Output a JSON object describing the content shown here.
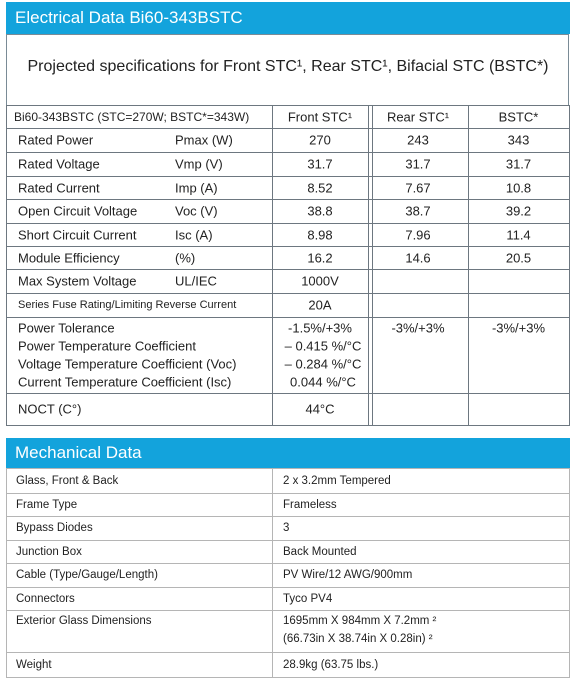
{
  "electrical": {
    "title": "Electrical Data Bi60-343BSTC",
    "subtitle": "Projected specifications for Front STC¹, Rear STC¹, Bifacial STC (BSTC*)",
    "header": [
      "Bi60-343BSTC (STC=270W; BSTC*=343W)",
      "Front STC¹",
      "Rear STC¹",
      "BSTC*"
    ],
    "rows": [
      {
        "label": "Rated Power",
        "unit": "Pmax (W)",
        "front": "270",
        "rear": "243",
        "bstc": "343"
      },
      {
        "label": "Rated Voltage",
        "unit": "Vmp (V)",
        "front": "31.7",
        "rear": "31.7",
        "bstc": "31.7"
      },
      {
        "label": "Rated Current",
        "unit": "Imp (A)",
        "front": "8.52",
        "rear": "7.67",
        "bstc": "10.8"
      },
      {
        "label": "Open Circuit Voltage",
        "unit": "Voc (V)",
        "front": "38.8",
        "rear": "38.7",
        "bstc": "39.2"
      },
      {
        "label": "Short Circuit Current",
        "unit": "Isc (A)",
        "front": "8.98",
        "rear": "7.96",
        "bstc": "11.4"
      },
      {
        "label": "Module Efficiency",
        "unit": "(%)",
        "front": "16.2",
        "rear": "14.6",
        "bstc": "20.5"
      },
      {
        "label": "Max System Voltage",
        "unit": "UL/IEC",
        "front": "1000V"
      },
      {
        "label": "Series Fuse Rating/Limiting Reverse Current",
        "front": "20A"
      },
      {
        "label": "Power Tolerance",
        "front": "-1.5%/+3%",
        "rear": "-3%/+3%",
        "bstc": "-3%/+3%"
      },
      {
        "label": "Power Temperature Coefficient",
        "front": "– 0.415 %/°C"
      },
      {
        "label": "Voltage Temperature Coefficient (Voc)",
        "front": "– 0.284 %/°C"
      },
      {
        "label": "Current Temperature Coefficient (Isc)",
        "front": "0.044 %/°C"
      },
      {
        "label": "NOCT (C°)",
        "front": "44°C"
      }
    ]
  },
  "mechanical": {
    "title": "Mechanical Data",
    "rows": [
      [
        "Glass, Front & Back",
        [
          "2 x 3.2mm Tempered"
        ]
      ],
      [
        "Frame Type",
        [
          "Frameless"
        ]
      ],
      [
        "Bypass Diodes",
        [
          "3"
        ]
      ],
      [
        "Junction Box",
        [
          "Back Mounted"
        ]
      ],
      [
        "Cable (Type/Gauge/Length)",
        [
          "PV Wire/12 AWG/900mm"
        ]
      ],
      [
        "Connectors",
        [
          "Tyco PV4"
        ]
      ],
      [
        "Exterior Glass Dimensions",
        [
          "1695mm X 984mm X 7.2mm ²",
          "(66.73in X 38.74in X 0.28in) ²"
        ]
      ],
      [
        "Weight",
        [
          "28.9kg (63.75 lbs.)"
        ]
      ]
    ]
  }
}
